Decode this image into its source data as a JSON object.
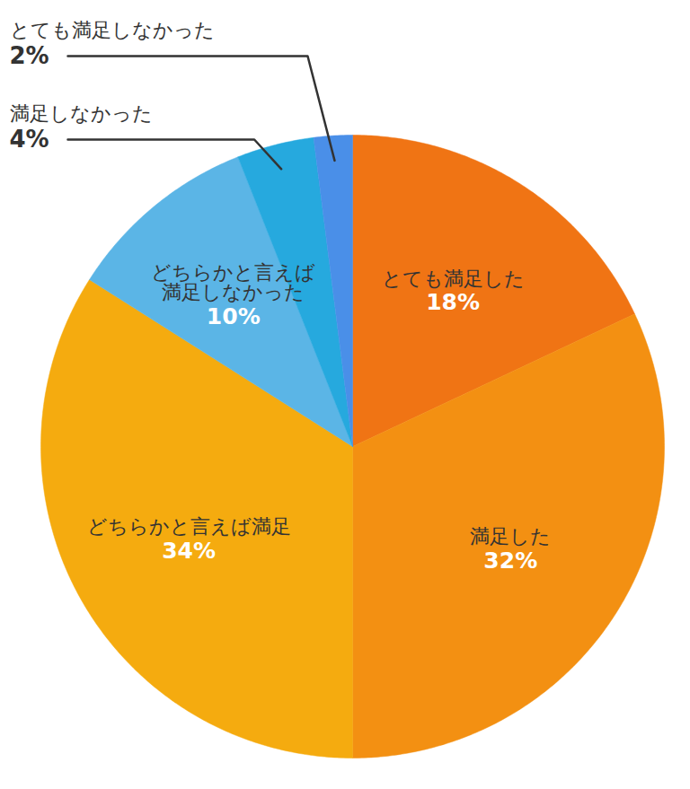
{
  "chart_data": {
    "type": "pie",
    "categories": [
      "とても満足した",
      "満足した",
      "どちらかと言えば満足",
      "どちらかと言えば\n満足しなかった",
      "満足しなかった",
      "とても満足しなかった"
    ],
    "values": [
      18,
      32,
      34,
      10,
      4,
      2
    ],
    "value_labels": [
      "18%",
      "32%",
      "34%",
      "10%",
      "4%",
      "2%"
    ],
    "colors": [
      "#F07414",
      "#F39012",
      "#F5AB0F",
      "#5BB5E6",
      "#26A9DE",
      "#4A8FE8"
    ],
    "data_labels": true
  }
}
